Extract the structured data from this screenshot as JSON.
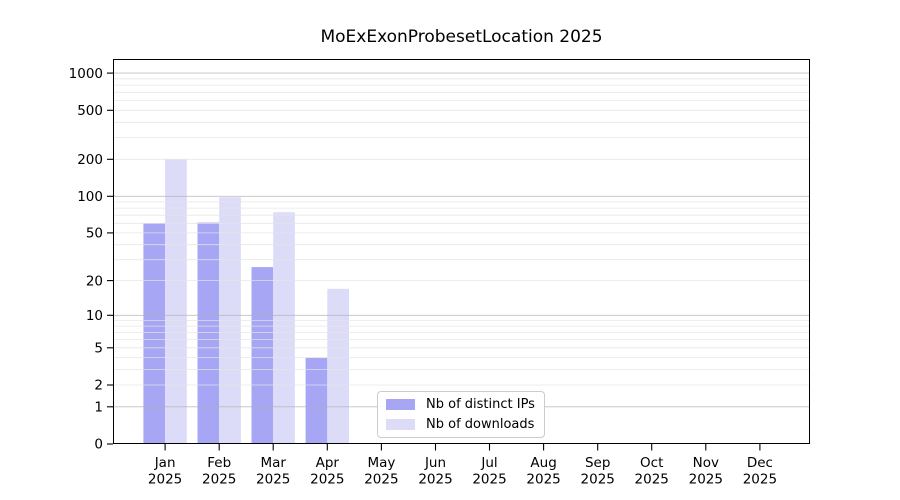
{
  "chart_data": {
    "type": "bar",
    "title": "MoExExonProbesetLocation 2025",
    "categories": [
      "Jan",
      "Feb",
      "Mar",
      "Apr",
      "May",
      "Jun",
      "Jul",
      "Aug",
      "Sep",
      "Oct",
      "Nov",
      "Dec"
    ],
    "year": "2025",
    "series": [
      {
        "name": "Nb of distinct IPs",
        "color": "#a6a6f4",
        "values": [
          60,
          61,
          26,
          4,
          0,
          0,
          0,
          0,
          0,
          0,
          0,
          0
        ]
      },
      {
        "name": "Nb of downloads",
        "color": "#dcdcf8",
        "values": [
          200,
          98,
          74,
          17,
          0,
          0,
          0,
          0,
          0,
          0,
          0,
          0
        ]
      }
    ],
    "y_axis": {
      "scale": "log10(value+1)",
      "ticks": [
        0,
        1,
        2,
        5,
        10,
        20,
        50,
        100,
        200,
        500,
        1000
      ],
      "major_gridlines": [
        1,
        10,
        100,
        1000
      ],
      "minor_gridlines": [
        2,
        3,
        4,
        5,
        6,
        7,
        8,
        9,
        20,
        30,
        40,
        50,
        60,
        70,
        80,
        90,
        200,
        300,
        400,
        500,
        600,
        700,
        800,
        900
      ],
      "ylim": [
        0,
        1300
      ]
    },
    "legend": {
      "position": "lower-center"
    },
    "grid": true,
    "colors": {
      "grid_major": "#b0b0b0",
      "grid_minor": "#e4e4e4",
      "frame": "#000000",
      "text": "#000000",
      "background": "#ffffff"
    }
  }
}
